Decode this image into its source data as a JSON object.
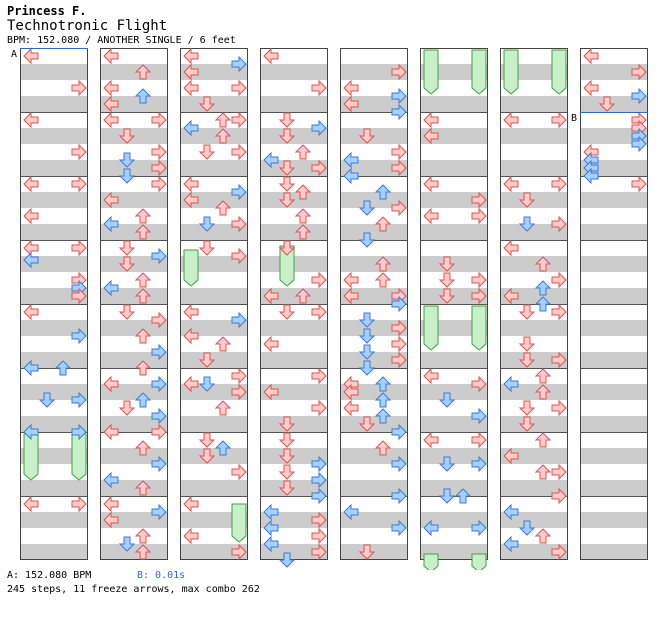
{
  "header": {
    "artist": "Princess F.",
    "title": "Technotronic Flight",
    "meta": "BPM: 152.080 / ANOTHER SINGLE / 6 feet"
  },
  "markers": {
    "a": "A",
    "b": "B"
  },
  "footer": {
    "bpm_a": "A: 152.080 BPM",
    "bpm_b": "B: 0.01s",
    "stats": "245 steps, 11 freeze arrows, max combo 262"
  },
  "colors": {
    "stripe": "#cccccc",
    "arrow_red_fill": "#ffcccc",
    "arrow_red_stroke": "#e05050",
    "arrow_blue_fill": "#a8d0ff",
    "arrow_blue_stroke": "#3a78d8",
    "freeze_fill": "#c8f0c8",
    "freeze_stroke": "#40a040",
    "marker_line": "#3366cc"
  },
  "icons": [
    "left-arrow-icon",
    "down-arrow-icon",
    "up-arrow-icon",
    "right-arrow-icon",
    "freeze-arrow-icon"
  ]
}
